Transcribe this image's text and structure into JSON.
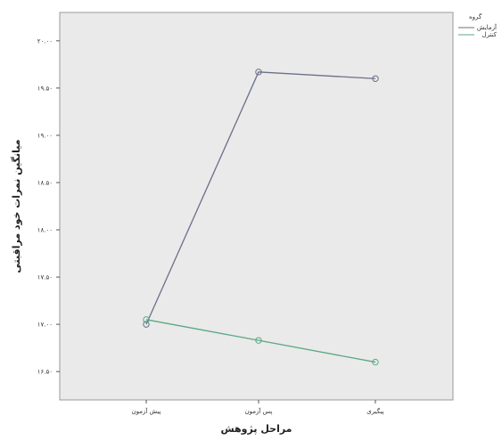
{
  "chart_data": {
    "type": "line",
    "title": "",
    "xlabel": "مراحل پژوهش",
    "ylabel": "میانگین نمرات خود مراقبتی",
    "categories": [
      "پیش آزمون",
      "پس آزمون",
      "پیگیری"
    ],
    "y_ticks": [
      {
        "value": 16.5,
        "label": "۱۶.۵۰"
      },
      {
        "value": 17.0,
        "label": "۱۷.۰۰"
      },
      {
        "value": 17.5,
        "label": "۱۷.۵۰"
      },
      {
        "value": 18.0,
        "label": "۱۸.۰۰"
      },
      {
        "value": 18.5,
        "label": "۱۸.۵۰"
      },
      {
        "value": 19.0,
        "label": "۱۹.۰۰"
      },
      {
        "value": 19.5,
        "label": "۱۹.۵۰"
      },
      {
        "value": 20.0,
        "label": "۲۰.۰۰"
      }
    ],
    "ylim": [
      16.2,
      20.3
    ],
    "series": [
      {
        "name": "آزمایش",
        "values": [
          17.0,
          19.67,
          19.6
        ],
        "color": "#6b6f8a"
      },
      {
        "name": "کنترل",
        "values": [
          17.05,
          16.83,
          16.6
        ],
        "color": "#5aa884"
      }
    ],
    "legend": {
      "title": "گروه",
      "position": "top-right"
    },
    "grid": false,
    "background_color": "#eaeaea"
  }
}
